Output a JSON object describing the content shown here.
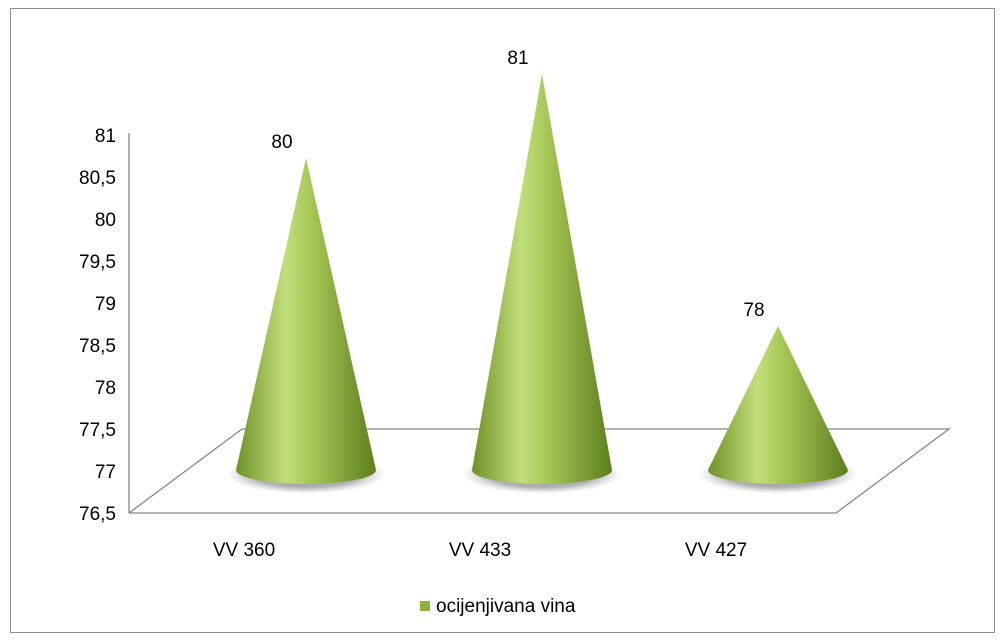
{
  "chart_data": {
    "type": "bar",
    "style": "3d-cone",
    "categories": [
      "VV 360",
      "VV 433",
      "VV 427"
    ],
    "series": [
      {
        "name": "ocijenjivana vina",
        "values": [
          80,
          81,
          78
        ],
        "color": "#8db33c"
      }
    ],
    "data_labels": [
      "80",
      "81",
      "78"
    ],
    "ylim": [
      76.5,
      81
    ],
    "yticks": [
      "76,5",
      "77",
      "77,5",
      "78",
      "78,5",
      "79",
      "79,5",
      "80",
      "80,5",
      "81"
    ],
    "ytick_values": [
      76.5,
      77,
      77.5,
      78,
      78.5,
      79,
      79.5,
      80,
      80.5,
      81
    ],
    "legend": {
      "position": "bottom"
    },
    "grid": false
  }
}
